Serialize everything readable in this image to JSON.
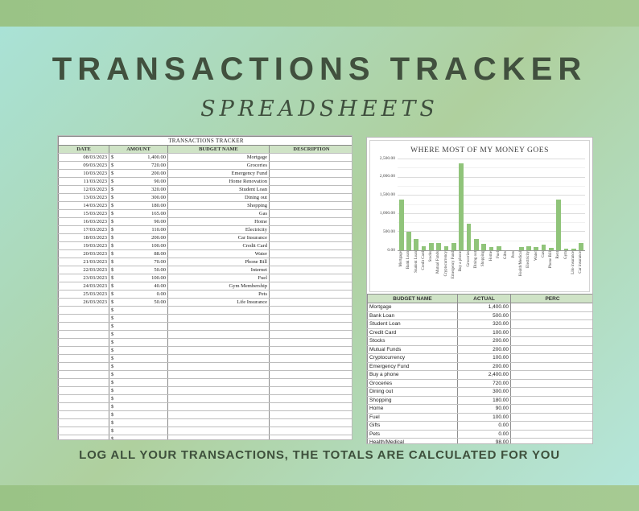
{
  "header": {
    "title": "TRANSACTIONS TRACKER",
    "subtitle": "SPREADSHEETS"
  },
  "footer": {
    "caption": "LOG ALL YOUR TRANSACTIONS, THE TOTALS ARE CALCULATED FOR YOU"
  },
  "transactions_sheet": {
    "title": "TRANSACTIONS TRACKER",
    "columns": [
      "DATE",
      "AMOUNT",
      "BUDGET NAME",
      "DESCRIPTION"
    ],
    "currency_symbol": "$",
    "empty_row_count": 19,
    "rows": [
      {
        "date": "08/03/2023",
        "amount": "1,400.00",
        "budget": "Mortgage",
        "description": ""
      },
      {
        "date": "09/03/2023",
        "amount": "720.00",
        "budget": "Groceries",
        "description": ""
      },
      {
        "date": "10/03/2023",
        "amount": "200.00",
        "budget": "Emergency Fund",
        "description": ""
      },
      {
        "date": "11/03/2023",
        "amount": "90.00",
        "budget": "Home Renovation",
        "description": ""
      },
      {
        "date": "12/03/2023",
        "amount": "320.00",
        "budget": "Student Loan",
        "description": ""
      },
      {
        "date": "13/03/2023",
        "amount": "300.00",
        "budget": "Dining out",
        "description": ""
      },
      {
        "date": "14/03/2023",
        "amount": "180.00",
        "budget": "Shopping",
        "description": ""
      },
      {
        "date": "15/03/2023",
        "amount": "165.00",
        "budget": "Gas",
        "description": ""
      },
      {
        "date": "16/03/2023",
        "amount": "90.00",
        "budget": "Home",
        "description": ""
      },
      {
        "date": "17/03/2023",
        "amount": "110.00",
        "budget": "Electricity",
        "description": ""
      },
      {
        "date": "18/03/2023",
        "amount": "200.00",
        "budget": "Car Insurance",
        "description": ""
      },
      {
        "date": "19/03/2023",
        "amount": "100.00",
        "budget": "Credit Card",
        "description": ""
      },
      {
        "date": "20/03/2023",
        "amount": "88.00",
        "budget": "Water",
        "description": ""
      },
      {
        "date": "21/03/2023",
        "amount": "70.00",
        "budget": "Phone Bill",
        "description": ""
      },
      {
        "date": "22/03/2023",
        "amount": "50.00",
        "budget": "Internet",
        "description": ""
      },
      {
        "date": "23/03/2023",
        "amount": "100.00",
        "budget": "Fuel",
        "description": ""
      },
      {
        "date": "24/03/2023",
        "amount": "40.00",
        "budget": "Gym Membership",
        "description": ""
      },
      {
        "date": "25/03/2023",
        "amount": "0.00",
        "budget": "Pets",
        "description": ""
      },
      {
        "date": "26/03/2023",
        "amount": "50.00",
        "budget": "Life Insurance",
        "description": ""
      }
    ]
  },
  "chart_data": {
    "type": "bar",
    "title": "WHERE MOST OF MY MONEY GOES",
    "categories": [
      "Mortgage",
      "Bank Loan",
      "Student Loan",
      "Credit Card",
      "Stocks",
      "Mutual Funds",
      "Cryptocurrency",
      "Emergency Fund",
      "Buy a phone",
      "Groceries",
      "Dining out",
      "Shopping",
      "Home",
      "Fuel",
      "Gifts",
      "Pets",
      "Health/Medical",
      "Electricity",
      "Water",
      "Gas",
      "Phone Bill",
      "Rent",
      "Gym",
      "Life insurance",
      "Car insurance"
    ],
    "values": [
      1400,
      500,
      320,
      100,
      200,
      200,
      100,
      200,
      2400,
      720,
      300,
      180,
      90,
      100,
      0,
      0,
      98,
      110,
      88,
      165,
      70,
      1400,
      40,
      50,
      200
    ],
    "xlabel": "",
    "ylabel": "",
    "ylim": [
      0,
      2500
    ],
    "ytick_labels": [
      "0.00",
      "500.00",
      "1,000.00",
      "1,500.00",
      "2,000.00",
      "2,500.00"
    ],
    "grid": true,
    "legend": false,
    "bar_color": "#90c47a"
  },
  "budget_sheet": {
    "columns": [
      "BUDGET NAME",
      "ACTUAL",
      "PERC"
    ],
    "rows": [
      {
        "name": "Mortgage",
        "actual": "1,400.00",
        "perc": ""
      },
      {
        "name": "Bank Loan",
        "actual": "500.00",
        "perc": ""
      },
      {
        "name": "Student Loan",
        "actual": "320.00",
        "perc": ""
      },
      {
        "name": "Credit Card",
        "actual": "100.00",
        "perc": ""
      },
      {
        "name": "Stocks",
        "actual": "200.00",
        "perc": ""
      },
      {
        "name": "Mutual Funds",
        "actual": "200.00",
        "perc": ""
      },
      {
        "name": "Cryptocurrency",
        "actual": "100.00",
        "perc": ""
      },
      {
        "name": "Emergency Fund",
        "actual": "200.00",
        "perc": ""
      },
      {
        "name": "Buy a phone",
        "actual": "2,400.00",
        "perc": ""
      },
      {
        "name": "Groceries",
        "actual": "720.00",
        "perc": ""
      },
      {
        "name": "Dining out",
        "actual": "300.00",
        "perc": ""
      },
      {
        "name": "Shopping",
        "actual": "180.00",
        "perc": ""
      },
      {
        "name": "Home",
        "actual": "90.00",
        "perc": ""
      },
      {
        "name": "Fuel",
        "actual": "100.00",
        "perc": ""
      },
      {
        "name": "Gifts",
        "actual": "0.00",
        "perc": ""
      },
      {
        "name": "Pets",
        "actual": "0.00",
        "perc": ""
      },
      {
        "name": "Health/Medical",
        "actual": "98.00",
        "perc": ""
      },
      {
        "name": "Electricity",
        "actual": "110.00",
        "perc": ""
      },
      {
        "name": "Water",
        "actual": "88.00",
        "perc": ""
      }
    ]
  },
  "colors": {
    "border_band_green": "#9dc189",
    "background_cyan": "#a9e3d9",
    "background_green": "#afd09e",
    "title_dark_green": "#41503e",
    "sheet_header_green": "#cfe3c6",
    "bar_green": "#90c47a"
  }
}
